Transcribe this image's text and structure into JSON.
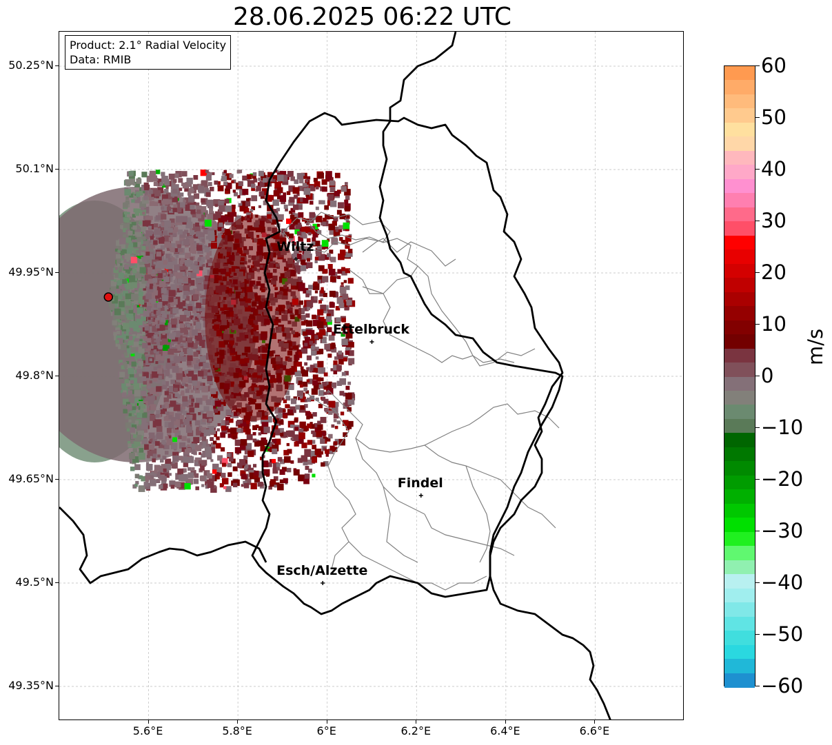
{
  "title": "28.06.2025 06:22 UTC",
  "info_box": {
    "product": "Product: 2.1° Radial Velocity",
    "data_source": "Data: RMIB"
  },
  "map": {
    "lon_range": [
      5.4,
      6.8
    ],
    "lat_range": [
      49.3,
      50.3
    ],
    "lat_ticks": [
      "50.25°N",
      "50.1°N",
      "49.95°N",
      "49.8°N",
      "49.65°N",
      "49.5°N",
      "49.35°N"
    ],
    "lon_ticks": [
      "5.6°E",
      "5.8°E",
      "6°E",
      "6.2°E",
      "6.4°E",
      "6.6°E"
    ],
    "grid": true,
    "radar_site": {
      "lon": 5.51,
      "lat": 49.915
    },
    "cities": [
      {
        "name": "Wiltz",
        "lon": 5.93,
        "lat": 49.97
      },
      {
        "name": "Ettelbruck",
        "lon": 6.1,
        "lat": 49.85
      },
      {
        "name": "Findel",
        "lon": 6.21,
        "lat": 49.627
      },
      {
        "name": "Esch/Alzette",
        "lon": 5.99,
        "lat": 49.5
      }
    ]
  },
  "colorbar": {
    "label": "m/s",
    "range": [
      -60,
      60
    ],
    "ticks": [
      "60",
      "50",
      "40",
      "30",
      "20",
      "10",
      "0",
      "−10",
      "−20",
      "−30",
      "−40",
      "−50",
      "−60"
    ],
    "colors": [
      "#ff9a50",
      "#ffab68",
      "#ffbb7c",
      "#ffca8e",
      "#ffe09f",
      "#ffd7a8",
      "#ffb8bd",
      "#ffa8c8",
      "#ff90d0",
      "#ff7fb0",
      "#ff6a8a",
      "#ff4f68",
      "#ff0000",
      "#e80000",
      "#d40000",
      "#c00000",
      "#aa0000",
      "#950000",
      "#820000",
      "#730000",
      "#7a3440",
      "#80505a",
      "#847078",
      "#82807a",
      "#6b8a70",
      "#5a7a58",
      "#006600",
      "#007800",
      "#008a00",
      "#009c00",
      "#00b000",
      "#00c800",
      "#00e000",
      "#20f020",
      "#60f870",
      "#90f0b0",
      "#b8f0f0",
      "#a0eeee",
      "#80e8e8",
      "#60e4e4",
      "#40dede",
      "#2ad8e0",
      "#20b8d8",
      "#1e90d0"
    ]
  }
}
